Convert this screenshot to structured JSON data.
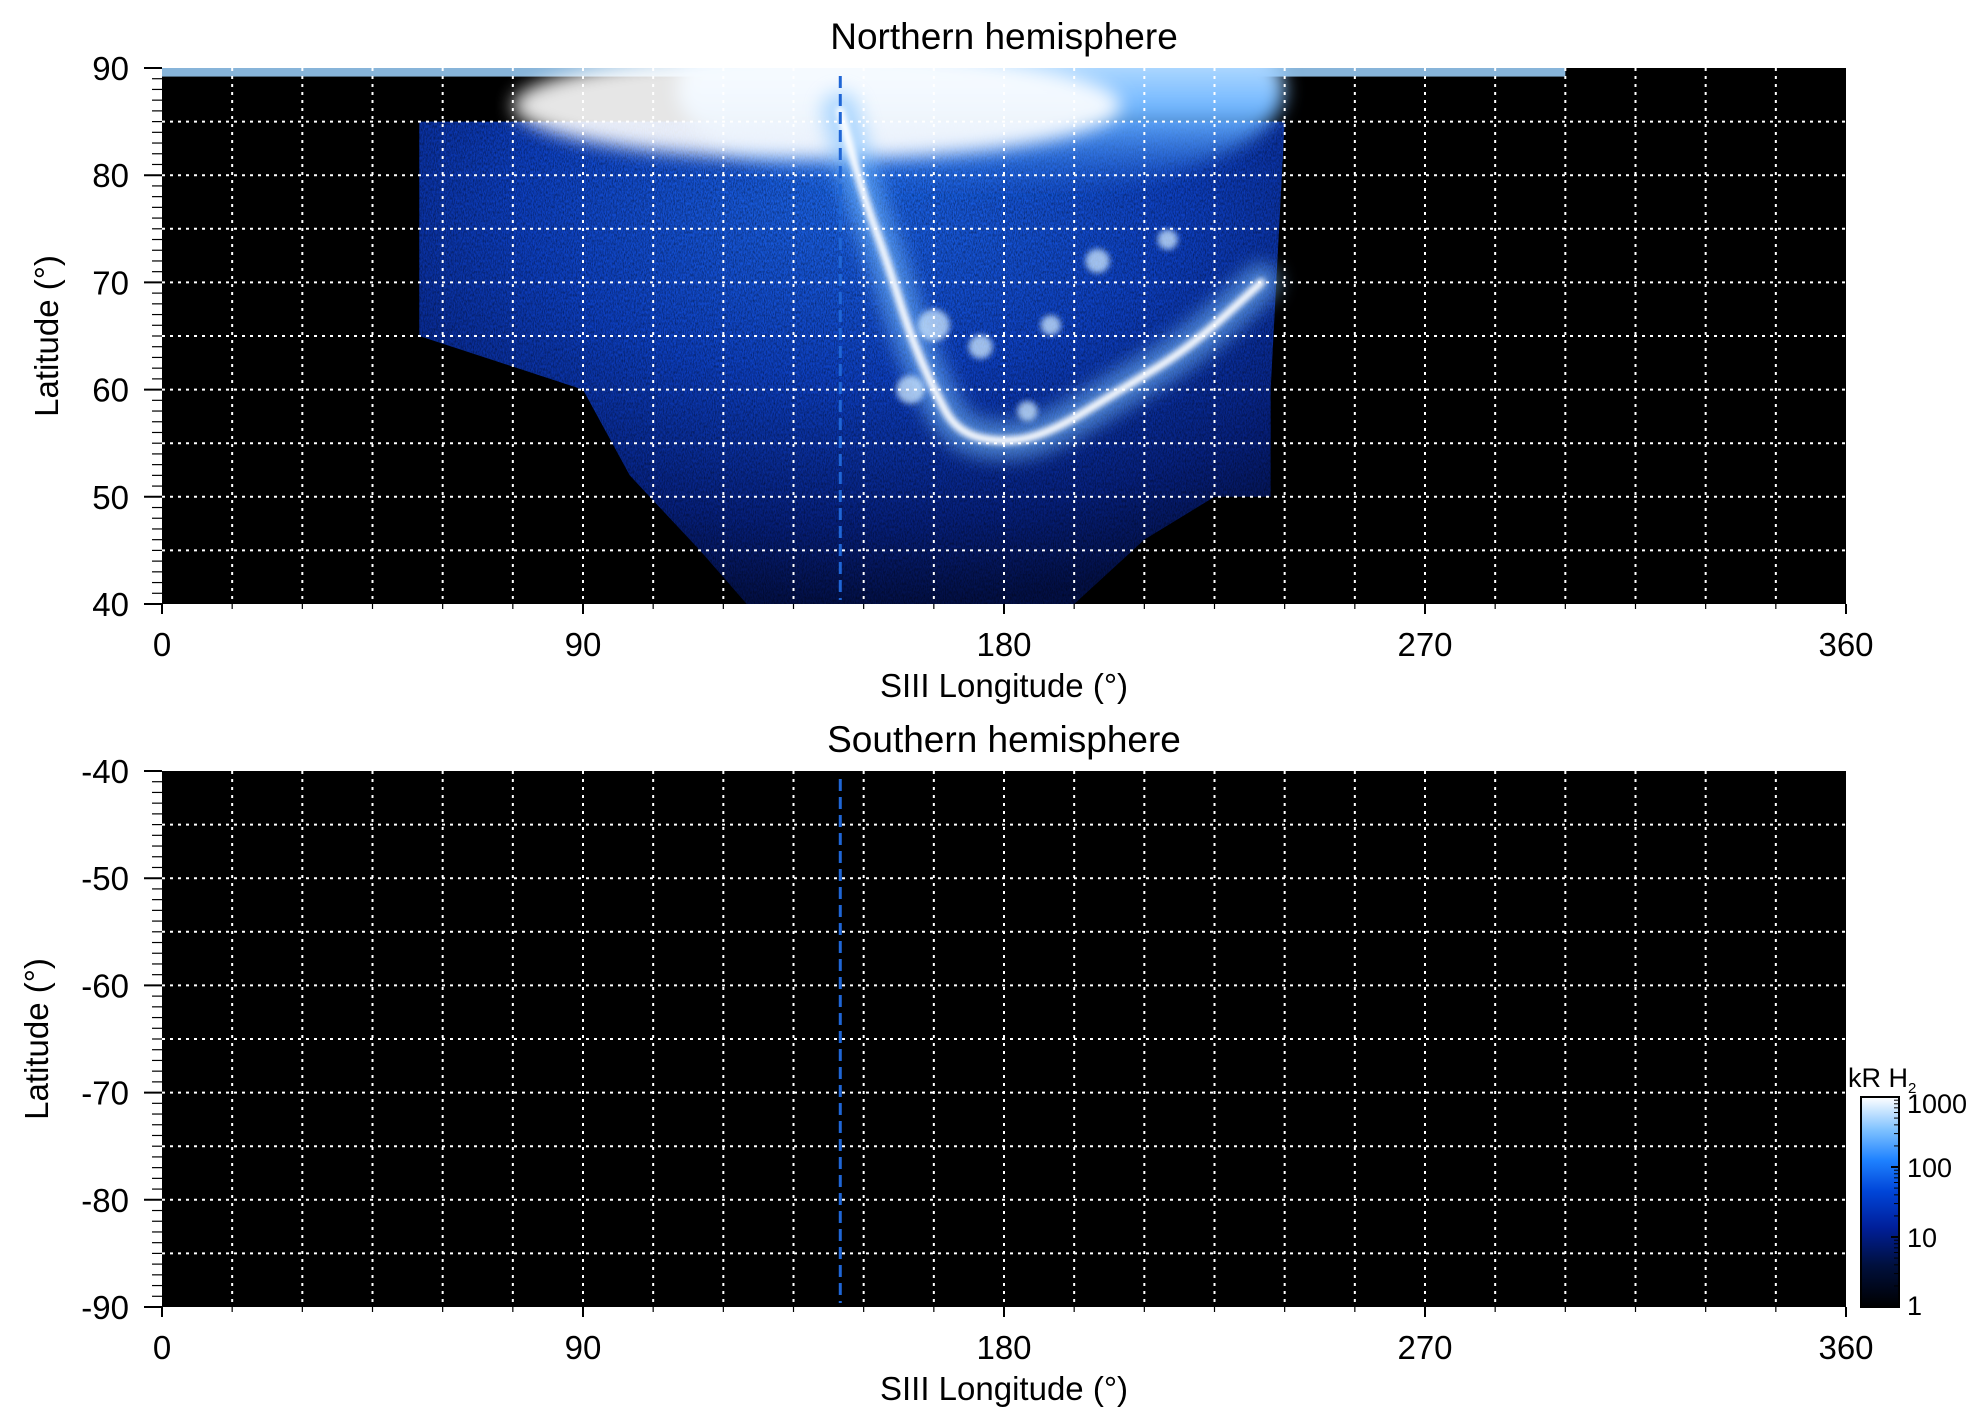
{
  "colors": {
    "background": "#000000",
    "grid": "#ffffff",
    "dashed_marker": "#1f66d6",
    "colormap": [
      "#000000",
      "#000a3a",
      "#0020a0",
      "#0050e0",
      "#2a8cff",
      "#8cc8ff",
      "#e8f6ff",
      "#ffffff"
    ]
  },
  "chart_data": [
    {
      "type": "heatmap",
      "title": "Northern hemisphere",
      "xlabel": "SIII Longitude (°)",
      "ylabel": "Latitude (°)",
      "xlim": [
        0,
        360
      ],
      "ylim": [
        40,
        90
      ],
      "xticks": [
        "0",
        "90",
        "180",
        "270",
        "360"
      ],
      "yticks": [
        "40",
        "50",
        "60",
        "70",
        "80",
        "90"
      ],
      "grid": true,
      "x_gridlines": [
        15,
        30,
        45,
        60,
        75,
        90,
        105,
        120,
        135,
        150,
        165,
        180,
        195,
        210,
        225,
        240,
        255,
        270,
        285,
        300,
        315,
        330,
        345
      ],
      "y_gridlines": [
        45,
        50,
        55,
        60,
        65,
        70,
        75,
        80,
        85
      ],
      "dashed_marker_longitude": 145,
      "emission_envelope": {
        "top_latitude": 89,
        "upper_edge": [
          [
            45,
            87
          ],
          [
            55,
            85
          ],
          [
            240,
            85
          ],
          [
            248,
            87
          ]
        ],
        "lower_edge": [
          [
            55,
            65
          ],
          [
            90,
            60
          ],
          [
            100,
            52
          ],
          [
            115,
            45
          ],
          [
            125,
            40
          ],
          [
            195,
            40
          ],
          [
            210,
            46
          ],
          [
            225,
            50
          ],
          [
            237,
            50
          ],
          [
            237,
            60
          ]
        ]
      },
      "main_oval": [
        [
          145,
          86
        ],
        [
          150,
          78
        ],
        [
          155,
          72
        ],
        [
          160,
          65
        ],
        [
          165,
          60
        ],
        [
          170,
          56
        ],
        [
          180,
          55
        ],
        [
          190,
          56
        ],
        [
          205,
          60
        ],
        [
          220,
          64
        ],
        [
          235,
          70
        ]
      ],
      "bright_polar_region": {
        "lon_range": [
          110,
          240
        ],
        "lat_range": [
          78,
          90
        ]
      }
    },
    {
      "type": "heatmap",
      "title": "Southern hemisphere",
      "xlabel": "SIII Longitude (°)",
      "ylabel": "Latitude (°)",
      "xlim": [
        0,
        360
      ],
      "ylim": [
        -90,
        -40
      ],
      "xticks": [
        "0",
        "90",
        "180",
        "270",
        "360"
      ],
      "yticks": [
        "-40",
        "-50",
        "-60",
        "-70",
        "-80",
        "-90"
      ],
      "grid": true,
      "x_gridlines": [
        15,
        30,
        45,
        60,
        75,
        90,
        105,
        120,
        135,
        150,
        165,
        180,
        195,
        210,
        225,
        240,
        255,
        270,
        285,
        300,
        315,
        330,
        345
      ],
      "y_gridlines": [
        -85,
        -80,
        -75,
        -70,
        -65,
        -60,
        -55,
        -50,
        -45
      ],
      "dashed_marker_longitude": 145,
      "emission": "none"
    }
  ],
  "colorbar": {
    "label_main": "kR H",
    "label_sub": "2",
    "scale": "log",
    "range": [
      1,
      1000
    ],
    "ticks": [
      "1",
      "10",
      "100",
      "1000"
    ]
  }
}
